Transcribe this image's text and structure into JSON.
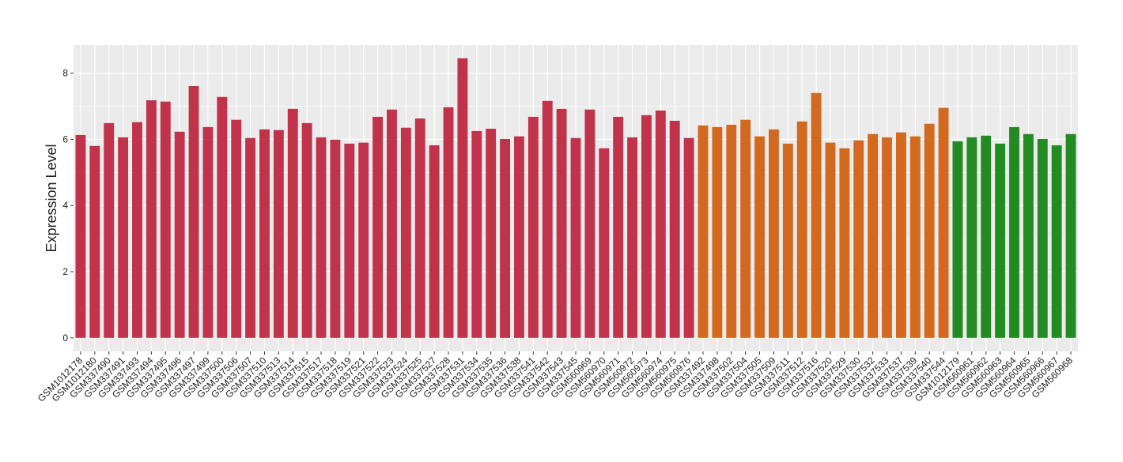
{
  "chart_data": {
    "type": "bar",
    "y_label": "Expression Level",
    "categories": [
      "GSM1012178",
      "GSM1012180",
      "GSM337490",
      "GSM337491",
      "GSM337493",
      "GSM337494",
      "GSM337495",
      "GSM337496",
      "GSM337497",
      "GSM337499",
      "GSM337500",
      "GSM337506",
      "GSM337507",
      "GSM337510",
      "GSM337513",
      "GSM337514",
      "GSM337515",
      "GSM337517",
      "GSM337518",
      "GSM337519",
      "GSM337521",
      "GSM337522",
      "GSM337523",
      "GSM337524",
      "GSM337525",
      "GSM337527",
      "GSM337528",
      "GSM337531",
      "GSM337534",
      "GSM337535",
      "GSM337536",
      "GSM337538",
      "GSM337541",
      "GSM337542",
      "GSM337543",
      "GSM337545",
      "GSM560969",
      "GSM560970",
      "GSM560971",
      "GSM560972",
      "GSM560973",
      "GSM560974",
      "GSM560975",
      "GSM560976",
      "GSM337492",
      "GSM337498",
      "GSM337502",
      "GSM337504",
      "GSM337505",
      "GSM337509",
      "GSM337511",
      "GSM337512",
      "GSM337516",
      "GSM337520",
      "GSM337529",
      "GSM337530",
      "GSM337532",
      "GSM337533",
      "GSM337537",
      "GSM337539",
      "GSM337540",
      "GSM337544",
      "GSM1012179",
      "GSM560961",
      "GSM560962",
      "GSM560963",
      "GSM560964",
      "GSM560965",
      "GSM560966",
      "GSM560967",
      "GSM560968"
    ],
    "values": [
      6.13,
      5.8,
      6.49,
      6.06,
      6.52,
      7.18,
      7.14,
      6.23,
      7.61,
      6.37,
      7.28,
      6.59,
      6.04,
      6.3,
      6.28,
      6.92,
      6.49,
      6.06,
      5.99,
      5.87,
      5.9,
      6.68,
      6.9,
      6.35,
      6.63,
      5.82,
      6.97,
      8.45,
      6.25,
      6.32,
      6.01,
      6.09,
      6.68,
      7.16,
      6.92,
      6.04,
      6.9,
      5.73,
      6.68,
      6.06,
      6.73,
      6.87,
      6.56,
      6.04,
      6.42,
      6.37,
      6.44,
      6.59,
      6.09,
      6.3,
      5.87,
      6.54,
      7.4,
      5.9,
      5.73,
      5.97,
      6.16,
      6.06,
      6.21,
      6.09,
      6.47,
      6.95,
      5.94,
      6.06,
      6.11,
      5.87,
      6.37,
      6.16,
      6.01,
      5.82,
      6.16
    ],
    "colors": [
      "#C0334A",
      "#C0334A",
      "#C0334A",
      "#C0334A",
      "#C0334A",
      "#C0334A",
      "#C0334A",
      "#C0334A",
      "#C0334A",
      "#C0334A",
      "#C0334A",
      "#C0334A",
      "#C0334A",
      "#C0334A",
      "#C0334A",
      "#C0334A",
      "#C0334A",
      "#C0334A",
      "#C0334A",
      "#C0334A",
      "#C0334A",
      "#C0334A",
      "#C0334A",
      "#C0334A",
      "#C0334A",
      "#C0334A",
      "#C0334A",
      "#C0334A",
      "#C0334A",
      "#C0334A",
      "#C0334A",
      "#C0334A",
      "#C0334A",
      "#C0334A",
      "#C0334A",
      "#C0334A",
      "#C0334A",
      "#C0334A",
      "#C0334A",
      "#C0334A",
      "#C0334A",
      "#C0334A",
      "#C0334A",
      "#C0334A",
      "#D2691E",
      "#D2691E",
      "#D2691E",
      "#D2691E",
      "#D2691E",
      "#D2691E",
      "#D2691E",
      "#D2691E",
      "#D2691E",
      "#D2691E",
      "#D2691E",
      "#D2691E",
      "#D2691E",
      "#D2691E",
      "#D2691E",
      "#D2691E",
      "#D2691E",
      "#D2691E",
      "#228B22",
      "#228B22",
      "#228B22",
      "#228B22",
      "#228B22",
      "#228B22",
      "#228B22",
      "#228B22",
      "#228B22"
    ],
    "ylim": [
      -0.41,
      8.85
    ],
    "yticks": [
      0,
      2,
      4,
      6,
      8
    ],
    "grid": true,
    "background": "#EBEBEB"
  }
}
